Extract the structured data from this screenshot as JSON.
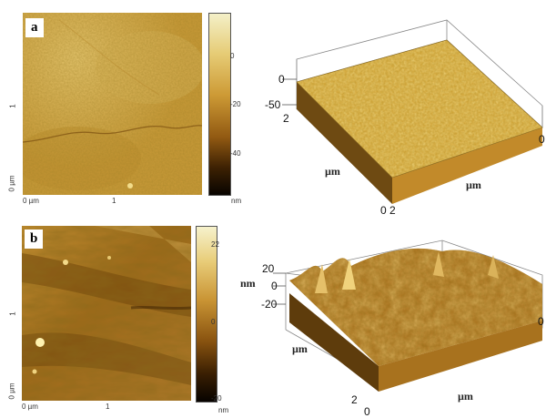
{
  "panels": [
    {
      "label": "a",
      "map2d": {
        "x_ticks": [
          "0 µm",
          "1"
        ],
        "y_ticks": [
          "1",
          "0 µm"
        ],
        "colorbar_ticks": [
          "0",
          "-20",
          "-40"
        ],
        "colorbar_unit": "nm",
        "colors": {
          "light": "#e3c36b",
          "mid": "#cb9d3a",
          "dark": "#5a3508",
          "black": "#0b0600"
        }
      },
      "surface3d": {
        "z_ticks": [
          "0",
          "-50"
        ],
        "x_tick_left": "2",
        "x_tick_right": "0",
        "corner_tick": "0 2",
        "unit_left": "µm",
        "unit_right": "µm"
      }
    },
    {
      "label": "b",
      "map2d": {
        "x_ticks": [
          "0 µm",
          "1"
        ],
        "y_ticks": [
          "1",
          "0 µm"
        ],
        "colorbar_ticks": [
          "22",
          "0",
          "-20"
        ],
        "colorbar_unit": "nm",
        "colors": {
          "light": "#e8c66c",
          "mid": "#a8741c",
          "dark": "#4a2a05",
          "black": "#0b0600"
        }
      },
      "surface3d": {
        "z_ticks": [
          "20",
          "0",
          "-20"
        ],
        "z_unit": "nm",
        "x_tick_left": "2",
        "x_tick_right": "0",
        "corner_tick": "0",
        "unit_left": "µm",
        "unit_right": "µm"
      }
    }
  ]
}
